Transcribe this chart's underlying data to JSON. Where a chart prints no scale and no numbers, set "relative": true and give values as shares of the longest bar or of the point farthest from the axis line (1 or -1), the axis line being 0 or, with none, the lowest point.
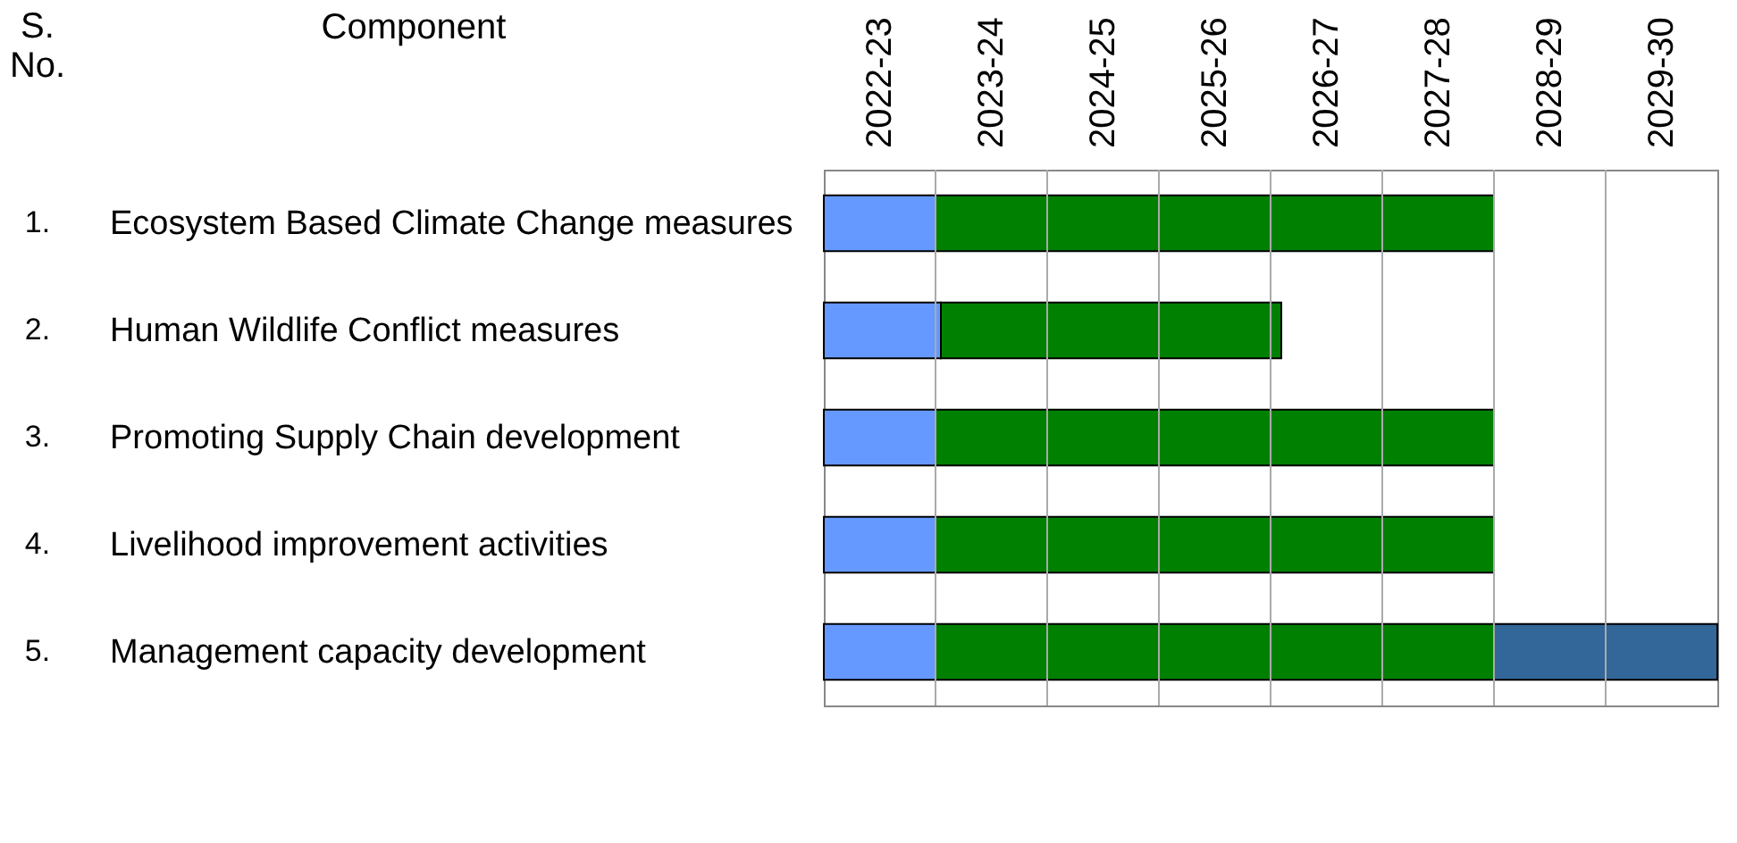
{
  "chart_data": {
    "type": "bar",
    "orientation": "horizontal",
    "stacked": true,
    "relative": true,
    "ylabel": "Component",
    "categories": [
      "Ecosystem Based Climate Change measures",
      "Human Wildlife Conflict measures",
      "Promoting Supply Chain development",
      "Livelihood improvement activities",
      "Management capacity development"
    ],
    "series": [
      {
        "color": "#6699ff",
        "values": [
          0.125,
          0.131,
          0.125,
          0.125,
          0.125
        ]
      },
      {
        "color": "#008000",
        "values": [
          0.625,
          0.381,
          0.625,
          0.625,
          0.625
        ]
      },
      {
        "color": "#336699",
        "values": [
          null,
          null,
          null,
          null,
          0.25
        ]
      }
    ],
    "grid": "x",
    "annotations": [
      "S. No.",
      "1.",
      "2.",
      "3.",
      "4.",
      "5.",
      "2022-23",
      "2023-24",
      "2024-25",
      "2025-26",
      "2026-27",
      "2027-28",
      "2028-29",
      "2029-30"
    ]
  }
}
